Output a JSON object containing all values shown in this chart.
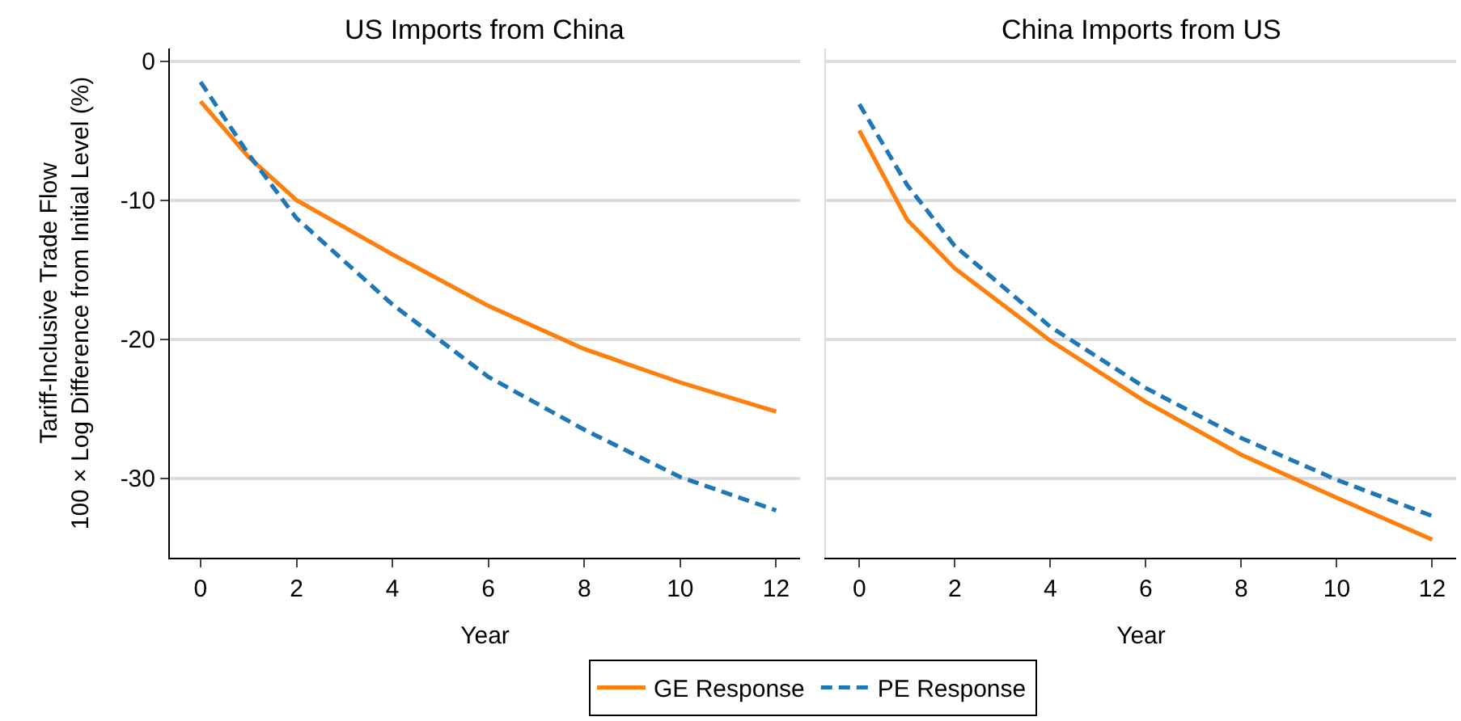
{
  "chart_data": [
    {
      "type": "line",
      "title": "US Imports from China",
      "xlabel": "Year",
      "ylabel": "Tariff-Inclusive Trade Flow\n100 × Log Difference from Initial Level (%)",
      "xlim": [
        -0.64,
        12.5
      ],
      "xticks": [
        0,
        2,
        4,
        6,
        8,
        10,
        12
      ],
      "ylim": [
        -35.7,
        0.9
      ],
      "yticks": [
        0,
        -10,
        -20,
        -30
      ],
      "grid": "y",
      "legend": "bottom",
      "series": [
        {
          "name": "GE Response",
          "color": "#ff7f0e",
          "line_style": "solid",
          "x": [
            0,
            1,
            2,
            4,
            6,
            8,
            10,
            12
          ],
          "values": [
            -2.9,
            -6.9,
            -10,
            -13.9,
            -17.6,
            -20.7,
            -23.1,
            -25.2
          ]
        },
        {
          "name": "PE Response",
          "color": "#1f77b4",
          "line_style": "dashed",
          "x": [
            0,
            1,
            2,
            4,
            6,
            8,
            10,
            12
          ],
          "values": [
            -1.5,
            -6.7,
            -11.3,
            -17.5,
            -22.7,
            -26.5,
            -29.9,
            -32.3
          ]
        }
      ]
    },
    {
      "type": "line",
      "title": "China Imports from US",
      "xlabel": "Year",
      "xlim": [
        -0.7,
        12.5
      ],
      "xticks": [
        0,
        2,
        4,
        6,
        8,
        10,
        12
      ],
      "ylim": [
        -35.7,
        0.9
      ],
      "yticks": [
        0,
        -10,
        -20,
        -30
      ],
      "grid": "y",
      "tick_labels": "x",
      "series": [
        {
          "name": "GE Response",
          "color": "#ff7f0e",
          "line_style": "solid",
          "x": [
            0,
            1,
            2,
            4,
            6,
            8,
            10,
            12
          ],
          "values": [
            -5.0,
            -11.4,
            -14.9,
            -20.1,
            -24.5,
            -28.3,
            -31.4,
            -34.4
          ]
        },
        {
          "name": "PE Response",
          "color": "#1f77b4",
          "line_style": "dashed",
          "x": [
            0,
            1,
            2,
            4,
            6,
            8,
            10,
            12
          ],
          "values": [
            -3.1,
            -8.9,
            -13.3,
            -19.1,
            -23.5,
            -27.1,
            -30.1,
            -32.7
          ]
        }
      ]
    }
  ]
}
